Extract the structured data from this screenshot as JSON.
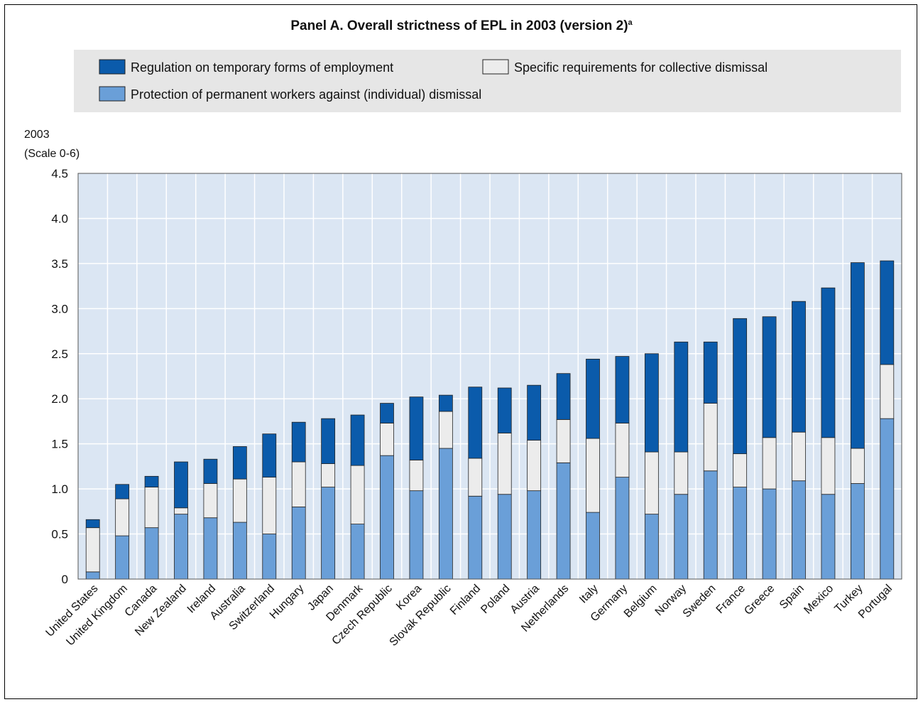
{
  "chart_data": {
    "type": "bar",
    "stacked": true,
    "title": "Panel A. Overall strictness of EPL in 2003 (version 2)",
    "title_note_marker": "a",
    "ylabel": [
      "2003",
      "(Scale 0-6)"
    ],
    "ylim": [
      0,
      4.5
    ],
    "yticks": [
      {
        "value": 0,
        "label": "0"
      },
      {
        "value": 0.5,
        "label": "0.5"
      },
      {
        "value": 1.0,
        "label": "1.0"
      },
      {
        "value": 1.5,
        "label": "1.5"
      },
      {
        "value": 2.0,
        "label": "2.0"
      },
      {
        "value": 2.5,
        "label": "2.5"
      },
      {
        "value": 3.0,
        "label": "3.0"
      },
      {
        "value": 3.5,
        "label": "3.5"
      },
      {
        "value": 4.0,
        "label": "4.0"
      },
      {
        "value": 4.5,
        "label": "4.5"
      }
    ],
    "grid": true,
    "legend_position": "top",
    "categories": [
      "United States",
      "United Kingdom",
      "Canada",
      "New Zealand",
      "Ireland",
      "Australia",
      "Switzerland",
      "Hungary",
      "Japan",
      "Denmark",
      "Czech Republic",
      "Korea",
      "Slovak Republic",
      "Finland",
      "Poland",
      "Austria",
      "Netherlands",
      "Italy",
      "Germany",
      "Belgium",
      "Norway",
      "Sweden",
      "France",
      "Greece",
      "Spain",
      "Mexico",
      "Turkey",
      "Portugal"
    ],
    "series": [
      {
        "name": "Protection of permanent workers against (individual) dismissal",
        "color": "#6a9fd8",
        "values": [
          0.08,
          0.48,
          0.57,
          0.72,
          0.68,
          0.63,
          0.5,
          0.8,
          1.02,
          0.61,
          1.37,
          0.98,
          1.45,
          0.92,
          0.94,
          0.98,
          1.29,
          0.74,
          1.13,
          0.72,
          0.94,
          1.2,
          1.02,
          1.0,
          1.09,
          0.94,
          1.06,
          1.78
        ]
      },
      {
        "name": "Specific requirements for collective dismissal",
        "color": "#ececec",
        "values": [
          0.49,
          0.41,
          0.45,
          0.07,
          0.38,
          0.48,
          0.63,
          0.5,
          0.26,
          0.65,
          0.36,
          0.34,
          0.41,
          0.42,
          0.68,
          0.56,
          0.48,
          0.82,
          0.6,
          0.69,
          0.47,
          0.75,
          0.37,
          0.57,
          0.54,
          0.63,
          0.39,
          0.6
        ]
      },
      {
        "name": "Regulation on temporary forms of employment",
        "color": "#0b5bab",
        "values": [
          0.09,
          0.16,
          0.12,
          0.51,
          0.27,
          0.36,
          0.48,
          0.44,
          0.5,
          0.56,
          0.22,
          0.7,
          0.18,
          0.79,
          0.5,
          0.61,
          0.51,
          0.88,
          0.74,
          1.09,
          1.22,
          0.68,
          1.5,
          1.34,
          1.45,
          1.66,
          2.06,
          1.15
        ]
      }
    ],
    "legend_order": [
      2,
      1,
      0
    ]
  }
}
